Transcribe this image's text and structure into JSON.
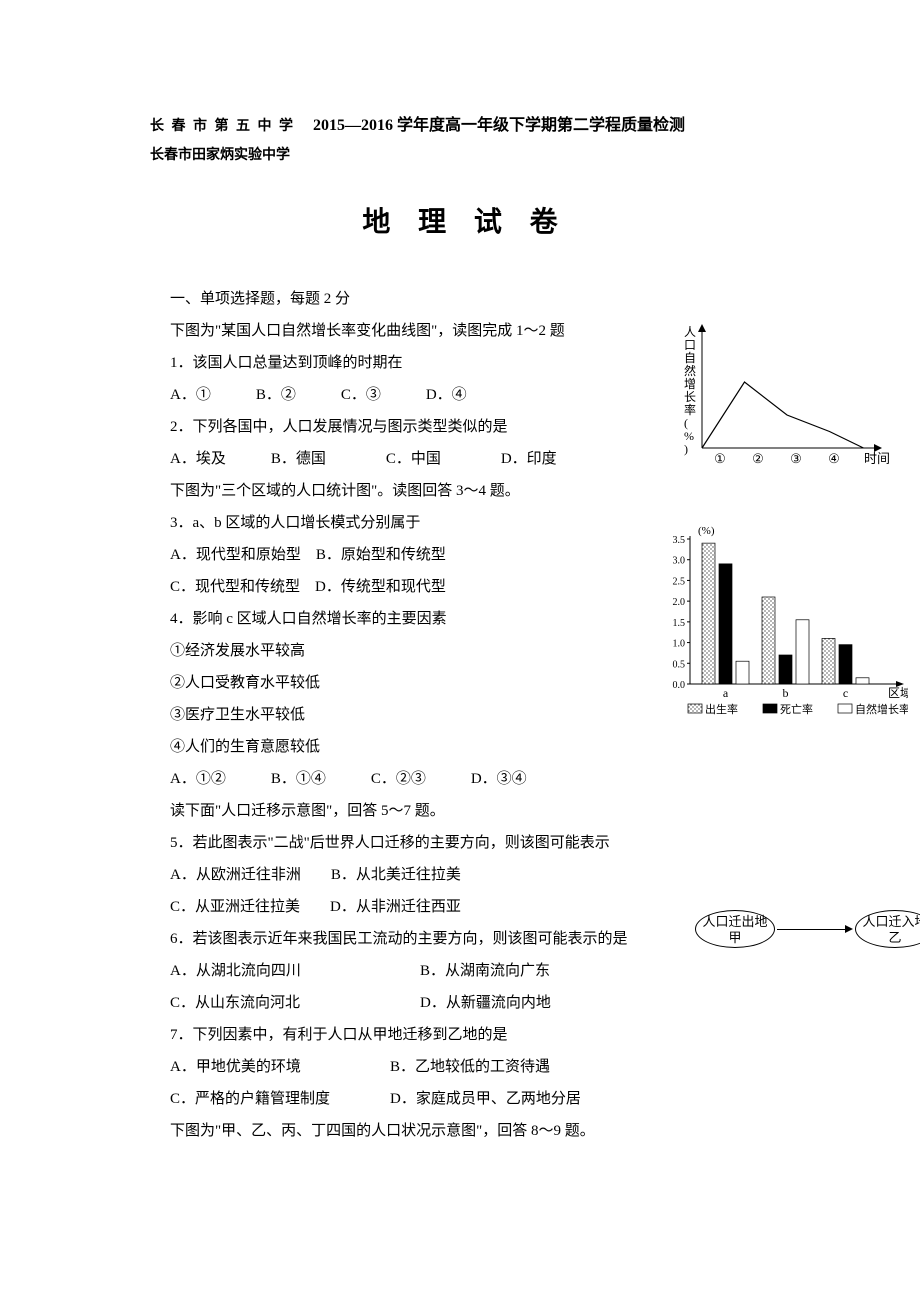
{
  "header": {
    "school1": "长 春 市 第 五 中 学",
    "school2": "长春市田家炳实验中学",
    "year_title": "2015—2016 学年度高一年级下学期第二学程质量检测",
    "exam_title": "地 理 试 卷"
  },
  "section1": {
    "heading": "一、单项选择题，每题 2 分",
    "fig1_intro": "下图为\"某国人口自然增长率变化曲线图\"，读图完成 1～2 题",
    "q1": "1．该国人口总量达到顶峰的时期在",
    "q1_opts": "A．①　　　B．②　　　C．③　　　D．④",
    "q2": "2．下列各国中，人口发展情况与图示类型类似的是",
    "q2_opts": "A．埃及　　　B．德国　　　　C．中国　　　　D．印度",
    "fig2_intro": "下图为\"三个区域的人口统计图\"。读图回答 3～4 题。",
    "q3": "3．a、b 区域的人口增长模式分别属于",
    "q3_opt_a": "A．现代型和原始型　B．原始型和传统型",
    "q3_opt_c": "C．现代型和传统型　D．传统型和现代型",
    "q4": "4．影响 c 区域人口自然增长率的主要因素",
    "q4_s1": "①经济发展水平较高",
    "q4_s2": "②人口受教育水平较低",
    "q4_s3": "③医疗卫生水平较低",
    "q4_s4": "④人们的生育意愿较低",
    "q4_opts": "A．①②　　　B．①④　　　C．②③　　　D．③④",
    "fig3_intro": "读下面\"人口迁移示意图\"，回答 5～7 题。",
    "q5": "5．若此图表示\"二战\"后世界人口迁移的主要方向，则该图可能表示",
    "q5_ab": "A．从欧洲迁往非洲　　B．从北美迁往拉美",
    "q5_cd": "C．从亚洲迁往拉美　　D．从非洲迁往西亚",
    "q6": "6．若该图表示近年来我国民工流动的主要方向，则该图可能表示的是",
    "q6_a": "A．从湖北流向四川",
    "q6_b": "B．从湖南流向广东",
    "q6_c": "C．从山东流向河北",
    "q6_d": "D．从新疆流向内地",
    "q7": "7．下列因素中，有利于人口从甲地迁移到乙地的是",
    "q7_a": "A．甲地优美的环境",
    "q7_b": "B．乙地较低的工资待遇",
    "q7_c": "C．严格的户籍管理制度",
    "q7_d": "D．家庭成员甲、乙两地分居",
    "fig4_intro": "下图为\"甲、乙、丙、丁四国的人口状况示意图\"，回答 8～9 题。"
  },
  "line_chart": {
    "y_label": "人口自然增长率(%)",
    "x_label": "时间",
    "x_ticks": [
      "①",
      "②",
      "③",
      "④"
    ],
    "points": [
      [
        0,
        0
      ],
      [
        25,
        60
      ],
      [
        50,
        30
      ],
      [
        75,
        15
      ],
      [
        95,
        0
      ]
    ],
    "axis_color": "#000",
    "line_color": "#000"
  },
  "bar_chart": {
    "y_label": "(%)",
    "y_ticks": [
      "0.0",
      "0.5",
      "1.0",
      "1.5",
      "2.0",
      "2.5",
      "3.0",
      "3.5"
    ],
    "categories": [
      "a",
      "b",
      "c"
    ],
    "x_label": "区域",
    "legend": [
      "出生率",
      "死亡率",
      "自然增长率"
    ],
    "series_birth": [
      3.4,
      2.1,
      1.1
    ],
    "series_death": [
      2.9,
      0.7,
      0.95
    ],
    "series_natural": [
      0.55,
      1.55,
      0.15
    ],
    "birth_fill": "hatch",
    "death_fill": "#000000",
    "natural_fill": "#ffffff",
    "axis_color": "#000"
  },
  "migration": {
    "node_out": "人口迁出地",
    "node_out_sub": "甲",
    "node_in": "人口迁入地",
    "node_in_sub": "乙"
  }
}
